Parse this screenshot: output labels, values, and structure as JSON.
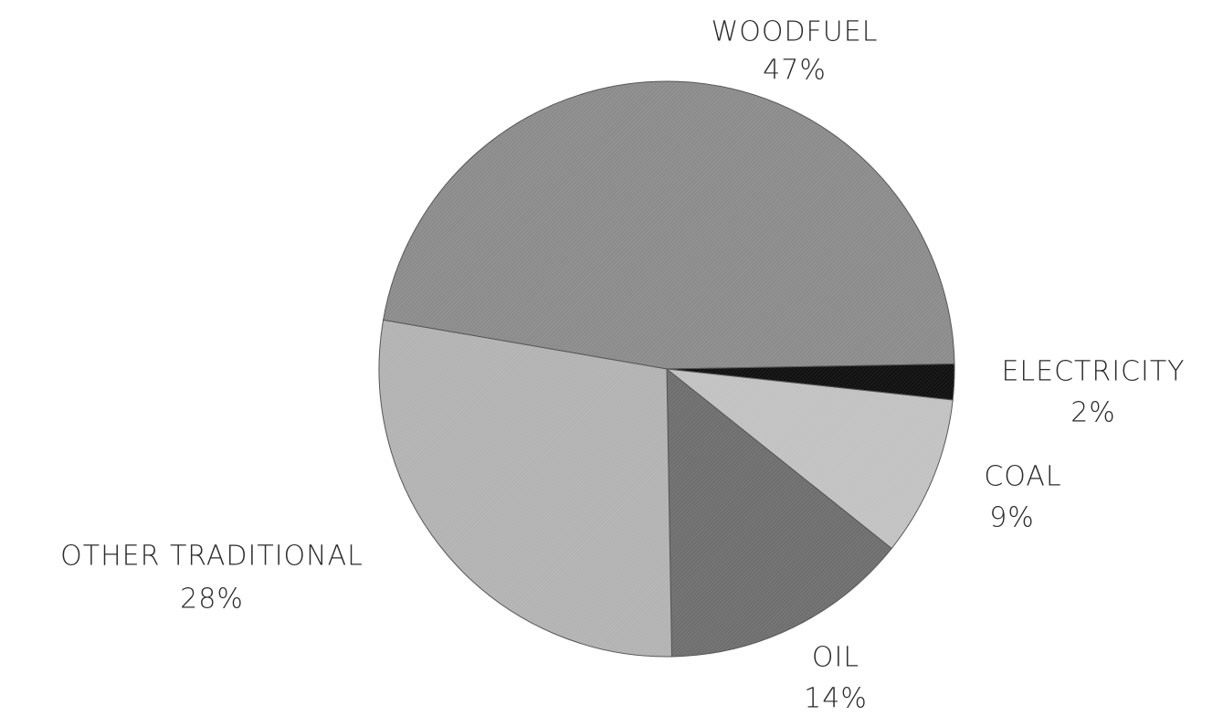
{
  "chart_data": {
    "type": "pie",
    "categories": [
      "WOODFUEL",
      "ELECTRICITY",
      "COAL",
      "OIL",
      "OTHER TRADITIONAL"
    ],
    "values": [
      47,
      2,
      9,
      14,
      28
    ],
    "value_labels": [
      "47%",
      "2%",
      "9%",
      "14%",
      "28%"
    ],
    "colors": [
      "#8c8c8c",
      "#111111",
      "#c2c2c2",
      "#6f6f6f",
      "#b3b3b3"
    ]
  }
}
